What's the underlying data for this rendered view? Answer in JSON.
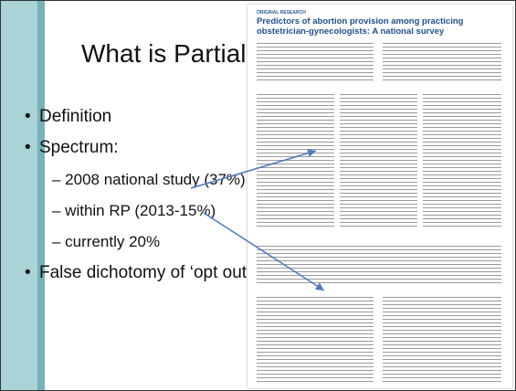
{
  "slide": {
    "title": "What is Partial Partici",
    "bullets": [
      "Definition",
      "Spectrum:",
      "False dichotomy of ‘opt out’ lang"
    ],
    "sub_bullets": [
      "– 2008 national study (37%)",
      "– within RP (2013-15%)",
      "– currently 20%"
    ]
  },
  "paper": {
    "section": "ORIGINAL RESEARCH",
    "title": "Predictors of abortion provision among practicing obstetrician-gynecologists: A national survey"
  }
}
